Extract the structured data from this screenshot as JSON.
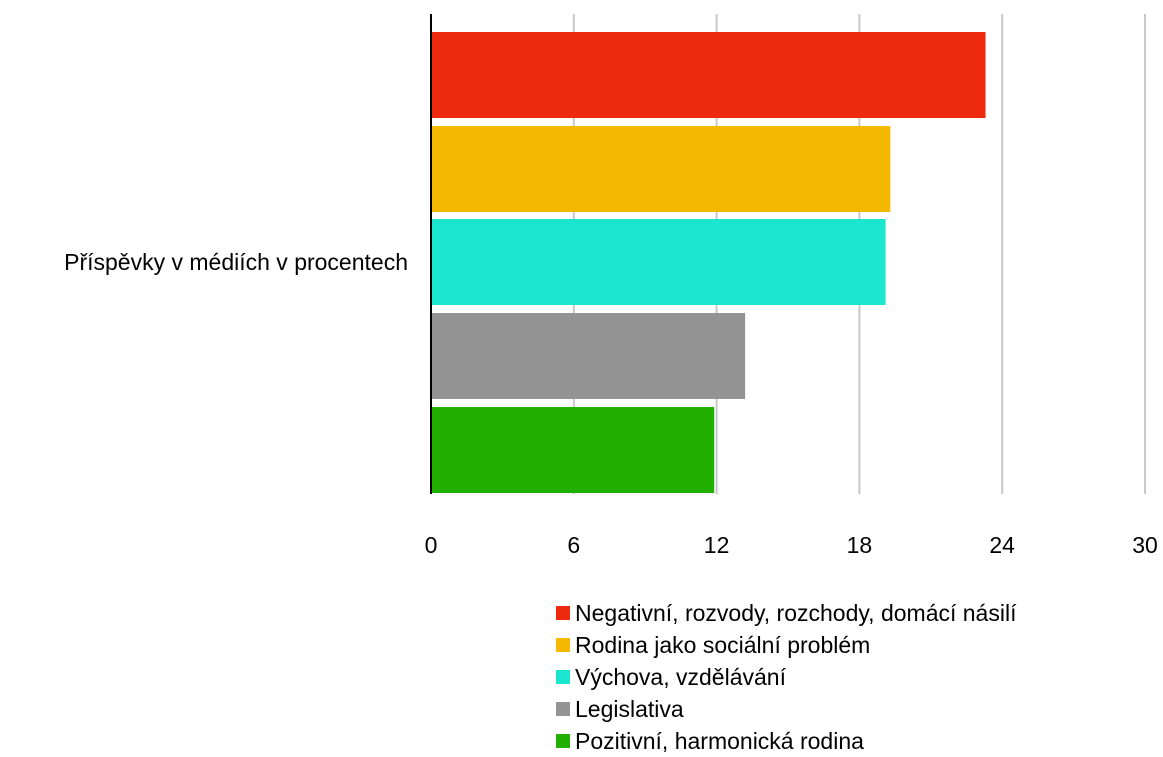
{
  "chart_data": {
    "type": "bar",
    "orientation": "horizontal",
    "category": "Příspěvky v médiích v procentech",
    "series": [
      {
        "name": "Negativní, rozvody, rozchody, domácí násilí",
        "value": 23.3,
        "color": "#ee2a0e"
      },
      {
        "name": "Rodina jako sociální problém",
        "value": 19.3,
        "color": "#f5b800"
      },
      {
        "name": "Výchova, vzdělávání",
        "value": 19.1,
        "color": "#1ae6d0"
      },
      {
        "name": "Legislativa",
        "value": 13.2,
        "color": "#949494"
      },
      {
        "name": "Pozitivní, harmonická rodina",
        "value": 11.9,
        "color": "#22b000"
      }
    ],
    "xticks": [
      "0",
      "6",
      "12",
      "18",
      "24",
      "30"
    ],
    "xlim": [
      0,
      30
    ],
    "grid": "vertical",
    "legend_position": "bottom"
  }
}
